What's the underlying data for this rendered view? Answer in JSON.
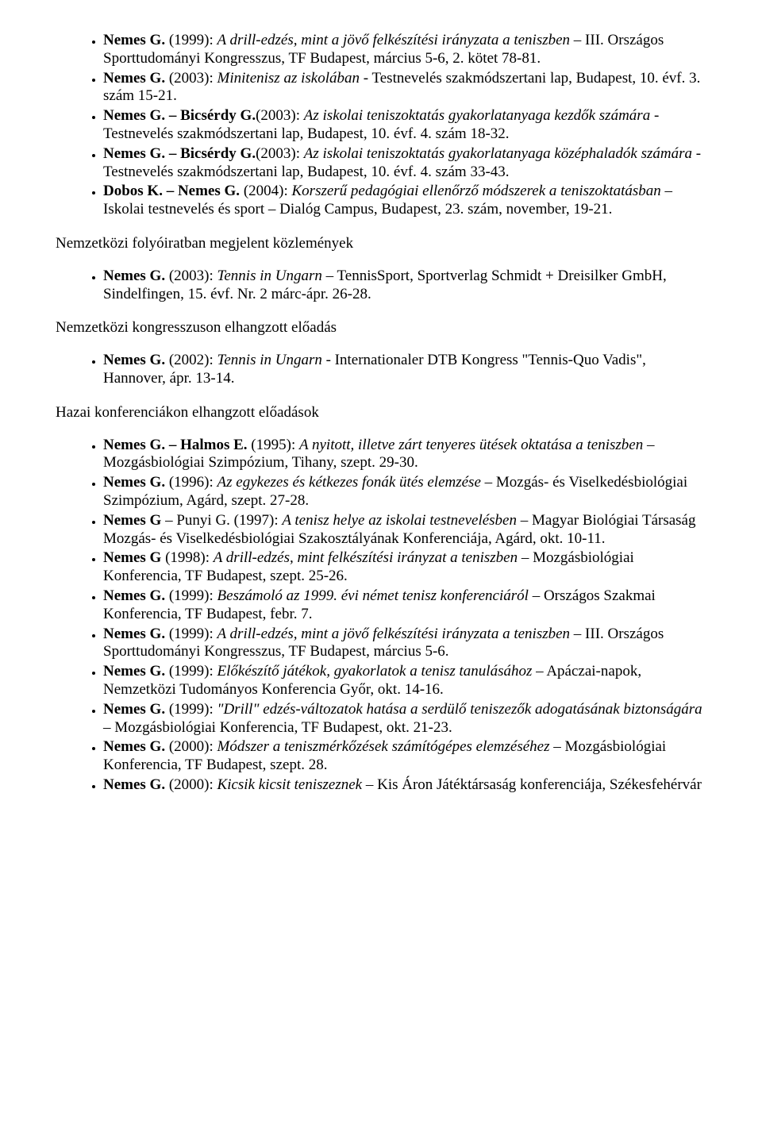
{
  "sections": [
    {
      "heading": null,
      "items": [
        {
          "html": "<span class='bold'>Nemes G.</span> (1999): <span class='italic'>A drill-edzés, mint a jövő felkészítési irányzata a teniszben</span> – III. Országos Sporttudományi Kongresszus, TF Budapest, március 5-6, 2. kötet 78-81."
        },
        {
          "html": "<span class='bold'>Nemes G.</span> (2003): <span class='italic'>Minitenisz az iskolában</span> - Testnevelés szakmódszertani lap, Budapest, 10. évf. 3. szám 15-21."
        },
        {
          "html": "<span class='bold'>Nemes G. – Bicsérdy G.</span>(2003): <span class='italic'>Az iskolai teniszoktatás gyakorlatanyaga kezdők számára</span> - Testnevelés szakmódszertani lap, Budapest, 10. évf. 4. szám 18-32."
        },
        {
          "html": "<span class='bold'>Nemes G. – Bicsérdy G.</span>(2003): <span class='italic'>Az iskolai teniszoktatás gyakorlatanyaga középhaladók számára</span> - Testnevelés szakmódszertani lap, Budapest, 10. évf. 4. szám 33-43."
        },
        {
          "html": "<span class='bold'>Dobos K. – Nemes G.</span> (2004): <span class='italic'>Korszerű pedagógiai ellenőrző módszerek a teniszoktatásban</span> – Iskolai testnevelés és sport – Dialóg Campus, Budapest, 23. szám, november, 19-21."
        }
      ]
    },
    {
      "heading": "Nemzetközi folyóiratban megjelent közlemények",
      "items": [
        {
          "html": "<span class='bold'>Nemes G.</span> (2003): <span class='italic'>Tennis in Ungarn</span> – TennisSport, Sportverlag Schmidt + Dreisilker GmbH, Sindelfingen, 15. évf. Nr. 2 márc-ápr. 26-28."
        }
      ]
    },
    {
      "heading": "Nemzetközi kongresszuson elhangzott előadás",
      "items": [
        {
          "html": "<span class='bold'>Nemes G.</span> (2002): <span class='italic'>Tennis in Ungarn</span> - Internationaler DTB Kongress \"Tennis-Quo Vadis\", Hannover, ápr. 13-14."
        }
      ]
    },
    {
      "heading": "Hazai konferenciákon elhangzott előadások",
      "items": [
        {
          "html": "<span class='bold'>Nemes G. – Halmos E.</span> (1995): <span class='italic'>A nyitott, illetve zárt tenyeres ütések oktatása a teniszben</span> – Mozgásbiológiai Szimpózium, Tihany, szept. 29-30."
        },
        {
          "html": "<span class='bold'>Nemes G.</span> (1996): <span class='italic'>Az egykezes és kétkezes fonák ütés elemzése</span> – Mozgás- és Viselkedésbiológiai Szimpózium, Agárd, szept. 27-28."
        },
        {
          "html": "<span class='bold'>Nemes G</span> – Punyi G. (1997): <span class='italic'>A tenisz helye az iskolai testnevelésben</span> – Magyar Biológiai Társaság Mozgás- és Viselkedésbiológiai Szakosztályának Konferenciája, Agárd, okt. 10-11."
        },
        {
          "html": "<span class='bold'>Nemes G</span> (1998): <span class='italic'>A drill-edzés, mint felkészítési irányzat a teniszben</span> – Mozgásbiológiai Konferencia, TF Budapest, szept. 25-26."
        },
        {
          "html": "<span class='bold'>Nemes G.</span> (1999): <span class='italic'>Beszámoló az 1999. évi német tenisz konferenciáról</span> – Országos Szakmai Konferencia, TF Budapest, febr. 7."
        },
        {
          "html": "<span class='bold'>Nemes G.</span> (1999): <span class='italic'>A drill-edzés, mint a jövő felkészítési irányzata a teniszben</span> – III. Országos Sporttudományi Kongresszus, TF Budapest, március 5-6."
        },
        {
          "html": "<span class='bold'>Nemes G.</span> (1999): <span class='italic'>Előkészítő játékok, gyakorlatok a tenisz tanulásához</span> – Apáczai-napok, Nemzetközi Tudományos Konferencia Győr, okt. 14-16."
        },
        {
          "html": "<span class='bold'>Nemes G.</span> (1999): <span class='italic'>\"Drill\" edzés-változatok hatása a serdülő teniszezők adogatásának biztonságára</span> – Mozgásbiológiai Konferencia, TF Budapest, okt. 21-23."
        },
        {
          "html": "<span class='bold'>Nemes G.</span> (2000): <span class='italic'>Módszer a teniszmérkőzések számítógépes elemzéséhez</span> – Mozgásbiológiai Konferencia, TF Budapest, szept. 28."
        },
        {
          "html": "<span class='bold'>Nemes G.</span> (2000): <span class='italic'>Kicsik kicsit teniszeznek</span> – Kis Áron Játéktársaság konferenciája, Székesfehérvár"
        }
      ]
    }
  ]
}
